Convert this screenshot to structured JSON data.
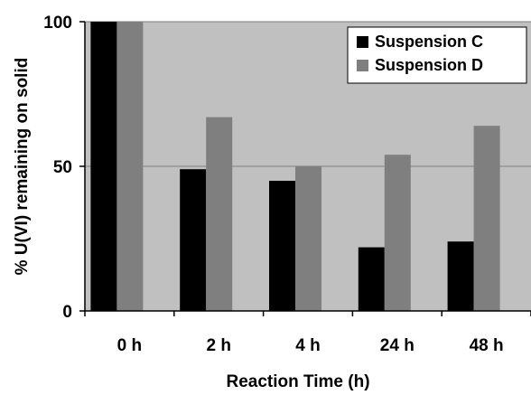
{
  "colors": {
    "background": "#ffffff",
    "plot_area": "#c0c0c0",
    "gridline": "#808080",
    "axis": "#000000"
  },
  "chart_data": {
    "type": "bar",
    "categories": [
      "0 h",
      "2 h",
      "4 h",
      "24 h",
      "48 h"
    ],
    "series": [
      {
        "name": "Suspension C",
        "values": [
          100,
          49,
          45,
          22,
          24
        ],
        "color": "#000000"
      },
      {
        "name": "Suspension D",
        "values": [
          100,
          67,
          50,
          54,
          64
        ],
        "color": "#7f7f7f"
      }
    ],
    "xlabel": "Reaction Time (h)",
    "ylabel": "% U(VI) remaining on solid",
    "ylim": [
      0,
      100
    ],
    "yticks": [
      0,
      50,
      100
    ],
    "grid": true,
    "legend_position": "top-right"
  }
}
